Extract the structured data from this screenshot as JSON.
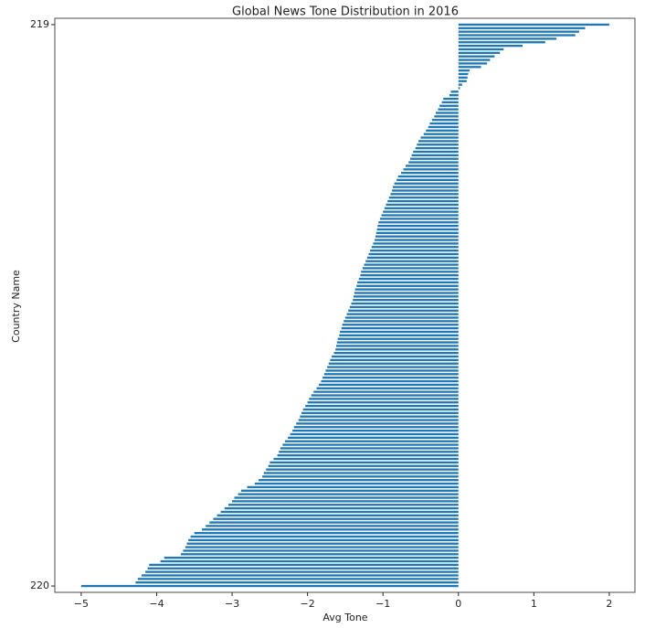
{
  "chart_data": {
    "type": "barh",
    "title": "Global News Tone Distribution in 2016",
    "xlabel": "Avg Tone",
    "ylabel": "Country Name",
    "color": "#1f77b4",
    "xlim": [
      -5.35,
      2.34
    ],
    "xticks": [
      {
        "value": -5,
        "label": "−5"
      },
      {
        "value": -4,
        "label": "−4"
      },
      {
        "value": -3,
        "label": "−3"
      },
      {
        "value": -2,
        "label": "−2"
      },
      {
        "value": -1,
        "label": "−1"
      },
      0,
      1,
      2
    ],
    "categories": [
      "219",
      null,
      null,
      null,
      null,
      null,
      null,
      null,
      null,
      null,
      null,
      null,
      null,
      null,
      null,
      null,
      null,
      null,
      null,
      null,
      null,
      null,
      null,
      null,
      null,
      null,
      null,
      null,
      null,
      null,
      null,
      null,
      null,
      null,
      null,
      null,
      null,
      null,
      null,
      null,
      null,
      null,
      null,
      null,
      null,
      null,
      null,
      null,
      null,
      null,
      null,
      null,
      null,
      null,
      null,
      null,
      null,
      null,
      null,
      null,
      null,
      null,
      null,
      null,
      null,
      null,
      null,
      null,
      null,
      null,
      null,
      null,
      null,
      null,
      null,
      null,
      null,
      null,
      null,
      null,
      null,
      null,
      null,
      null,
      null,
      null,
      null,
      null,
      null,
      null,
      null,
      null,
      null,
      null,
      null,
      null,
      null,
      null,
      null,
      null,
      null,
      null,
      null,
      null,
      null,
      null,
      null,
      null,
      null,
      null,
      null,
      null,
      null,
      null,
      null,
      null,
      null,
      null,
      null,
      null,
      null,
      null,
      null,
      null,
      null,
      null,
      null,
      null,
      null,
      null,
      null,
      null,
      null,
      null,
      null,
      null,
      null,
      null,
      null,
      null,
      null,
      null,
      null,
      null,
      null,
      null,
      null,
      null,
      null,
      null,
      null,
      null,
      null,
      null,
      null,
      null,
      null,
      null,
      null,
      "220"
    ],
    "values": [
      2.0,
      1.68,
      1.6,
      1.55,
      1.3,
      1.15,
      0.85,
      0.6,
      0.55,
      0.48,
      0.42,
      0.38,
      0.3,
      0.15,
      0.13,
      0.12,
      0.11,
      0.05,
      0.02,
      -0.1,
      -0.12,
      -0.2,
      -0.22,
      -0.25,
      -0.27,
      -0.3,
      -0.32,
      -0.35,
      -0.38,
      -0.4,
      -0.43,
      -0.46,
      -0.5,
      -0.53,
      -0.55,
      -0.57,
      -0.6,
      -0.62,
      -0.64,
      -0.66,
      -0.7,
      -0.73,
      -0.76,
      -0.8,
      -0.82,
      -0.85,
      -0.87,
      -0.88,
      -0.9,
      -0.92,
      -0.94,
      -0.96,
      -0.98,
      -1.0,
      -1.02,
      -1.04,
      -1.06,
      -1.07,
      -1.08,
      -1.09,
      -1.1,
      -1.11,
      -1.13,
      -1.15,
      -1.17,
      -1.19,
      -1.21,
      -1.23,
      -1.25,
      -1.27,
      -1.29,
      -1.3,
      -1.32,
      -1.34,
      -1.35,
      -1.37,
      -1.38,
      -1.39,
      -1.4,
      -1.42,
      -1.44,
      -1.46,
      -1.48,
      -1.5,
      -1.52,
      -1.54,
      -1.55,
      -1.57,
      -1.58,
      -1.6,
      -1.61,
      -1.62,
      -1.63,
      -1.65,
      -1.68,
      -1.7,
      -1.72,
      -1.74,
      -1.76,
      -1.78,
      -1.8,
      -1.82,
      -1.85,
      -1.88,
      -1.92,
      -1.95,
      -1.98,
      -2.0,
      -2.03,
      -2.06,
      -2.08,
      -2.1,
      -2.12,
      -2.15,
      -2.18,
      -2.2,
      -2.23,
      -2.26,
      -2.3,
      -2.33,
      -2.36,
      -2.38,
      -2.4,
      -2.45,
      -2.5,
      -2.52,
      -2.55,
      -2.58,
      -2.6,
      -2.65,
      -2.7,
      -2.8,
      -2.88,
      -2.92,
      -2.97,
      -3.0,
      -3.05,
      -3.1,
      -3.15,
      -3.2,
      -3.25,
      -3.3,
      -3.35,
      -3.4,
      -3.5,
      -3.55,
      -3.58,
      -3.6,
      -3.62,
      -3.65,
      -3.68,
      -3.9,
      -3.95,
      -4.1,
      -4.12,
      -4.15,
      -4.2,
      -4.25,
      -4.28,
      -5.0
    ]
  }
}
